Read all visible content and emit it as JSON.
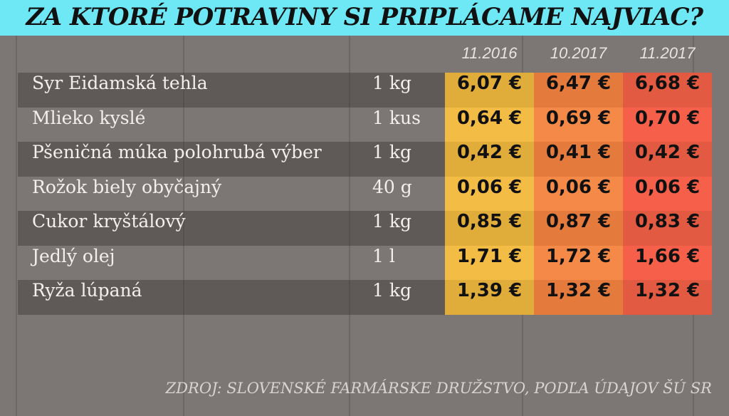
{
  "title": "ZA KTORÉ POTRAVINY SI PRIPLÁCAME NAJVIAC?",
  "source": "ZDROJ: SLOVENSKÉ FARMÁRSKE DRUŽSTVO, PODĽA ÚDAJOV ŠÚ SR",
  "colors": {
    "title_bg": "#6ee8f5",
    "col_11_2016": "#f2bc45",
    "col_10_2017": "#f58a48",
    "col_11_2017": "#f6604a"
  },
  "chart_data": {
    "type": "table",
    "title": "ZA KTORÉ POTRAVINY SI PRIPLÁCAME NAJVIAC?",
    "columns": [
      "11.2016",
      "10.2017",
      "11.2017"
    ],
    "rows": [
      {
        "name": "Syr Eidamská tehla",
        "unit": "1 kg",
        "values": [
          "6,07 €",
          "6,47 €",
          "6,68 €"
        ]
      },
      {
        "name": "Mlieko kyslé",
        "unit": "1 kus",
        "values": [
          "0,64 €",
          "0,69 €",
          "0,70 €"
        ]
      },
      {
        "name": "Pšeničná múka polohrubá výber",
        "unit": "1 kg",
        "values": [
          "0,42 €",
          "0,41 €",
          "0,42 €"
        ]
      },
      {
        "name": "Rožok biely obyčajný",
        "unit": "40 g",
        "values": [
          "0,06 €",
          "0,06 €",
          "0,06 €"
        ]
      },
      {
        "name": "Cukor kryštálový",
        "unit": "1 kg",
        "values": [
          "0,85 €",
          "0,87 €",
          "0,83 €"
        ]
      },
      {
        "name": "Jedlý olej",
        "unit": "1 l",
        "values": [
          "1,71 €",
          "1,72 €",
          "1,66 €"
        ]
      },
      {
        "name": "Ryža lúpaná",
        "unit": "1 kg",
        "values": [
          "1,39 €",
          "1,32 €",
          "1,32 €"
        ]
      }
    ]
  }
}
